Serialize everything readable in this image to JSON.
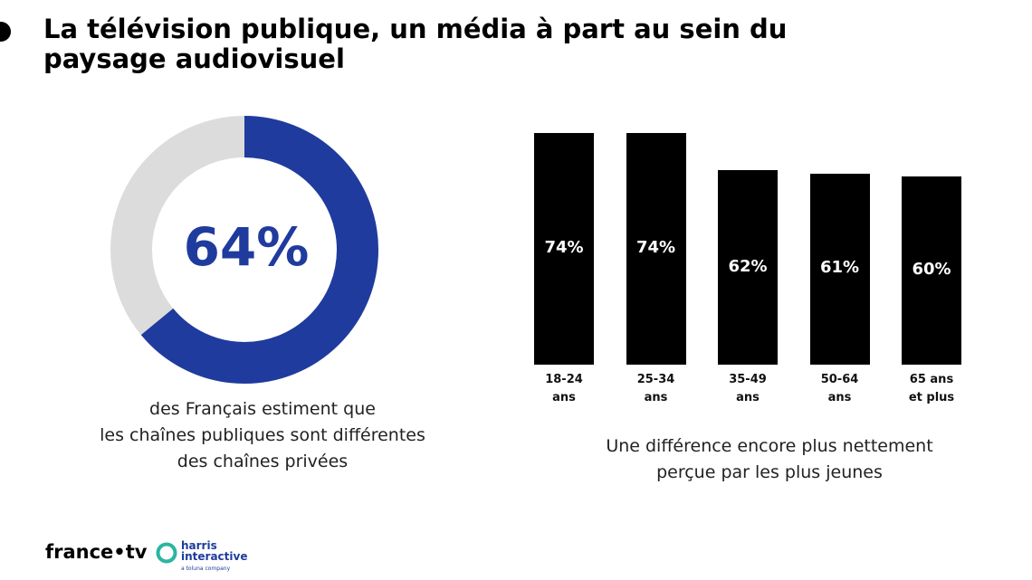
{
  "title": "La télévision publique, un média à part au sein du paysage audiovisuel",
  "chart_data": [
    {
      "type": "donut",
      "values": [
        64
      ],
      "value_labels": [
        "64%"
      ],
      "color": "#1f3b9e",
      "track_color": "#dcdcdc",
      "caption": [
        "des Français estiment que",
        "les chaînes publiques sont différentes",
        "des chaînes privées"
      ]
    },
    {
      "type": "bar",
      "categories": [
        "18-24 ans",
        "25-34 ans",
        "35-49 ans",
        "50-64 ans",
        "65 ans et plus"
      ],
      "values": [
        74,
        74,
        62,
        61,
        60
      ],
      "value_labels": [
        "74%",
        "74%",
        "62%",
        "61%",
        "60%"
      ],
      "color": "#000000",
      "caption": [
        "Une différence encore plus nettement",
        "perçue par les plus jeunes"
      ]
    }
  ],
  "footer": {
    "brand": "france•tv",
    "partner": "harris interactive",
    "partner_tagline": "a toluna company"
  }
}
